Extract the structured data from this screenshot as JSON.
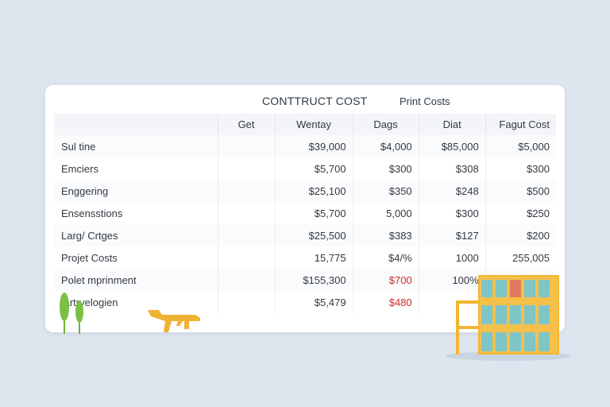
{
  "header": {
    "title": "CONTTRUCT COST",
    "subtitle": "Print Costs"
  },
  "table": {
    "columns": [
      "",
      "Get",
      "Wentay",
      "Dags",
      "Diat",
      "Fagut Cost"
    ],
    "rows": [
      {
        "label": "Sul tine",
        "cells": [
          "",
          "$39,000",
          "$4,000",
          "$85,000",
          "$5,000"
        ]
      },
      {
        "label": "Emciers",
        "cells": [
          "",
          "$5,700",
          "$300",
          "$308",
          "$300"
        ]
      },
      {
        "label": "Enggering",
        "cells": [
          "",
          "$25,100",
          "$350",
          "$248",
          "$500"
        ]
      },
      {
        "label": "Ensensstions",
        "cells": [
          "",
          "$5,700",
          "5,000",
          "$300",
          "$250"
        ]
      },
      {
        "label": "Larg/ Crtges",
        "cells": [
          "",
          "$25,500",
          "$383",
          "$127",
          "$200"
        ]
      },
      {
        "label": "Projet Costs",
        "cells": [
          "",
          "15,775",
          "$4/%",
          "1000",
          "255,005"
        ]
      },
      {
        "label": "Polet mprinment",
        "cells": [
          "",
          "$155,300",
          "$700",
          "100%",
          ""
        ]
      },
      {
        "label": "Iartrvelogien",
        "cells": [
          "",
          "$5,479",
          "$480",
          "",
          ""
        ]
      }
    ],
    "highlight_color": "#cc2b2b",
    "highlighted_cells": [
      "6.2",
      "7.2"
    ]
  },
  "decor": {
    "accent": "#f2b632",
    "leaf_color": "#6fb23a",
    "icons": [
      "leaf-icon",
      "rifle-icon",
      "building-icon"
    ]
  }
}
